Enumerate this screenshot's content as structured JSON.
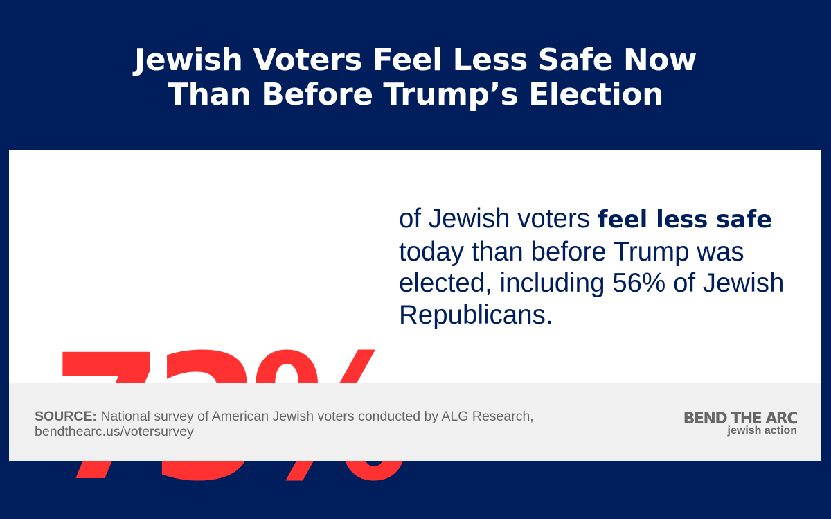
{
  "header": {
    "title_line1": "Jewish Voters Feel Less Safe Now",
    "title_line2": "Than Before Trump’s Election"
  },
  "stat": {
    "value": "73%",
    "color": "#ff3131",
    "desc_prefix": "of Jewish voters ",
    "desc_bold": "feel less safe",
    "desc_suffix": " today than before Trump was elected, including 56% of Jewish Republicans."
  },
  "footer": {
    "source_label": "SOURCE:",
    "source_text": " National survey of American Jewish voters conducted by ALG Research,",
    "source_url": "bendthearc.us/votersurvey"
  },
  "logo": {
    "line1": "BEND THE ARC",
    "line2": "jewish action"
  },
  "colors": {
    "background": "#001e5c",
    "accent": "#ff3131",
    "footer_bg": "#f0f0f0",
    "text_gray": "#646464"
  }
}
